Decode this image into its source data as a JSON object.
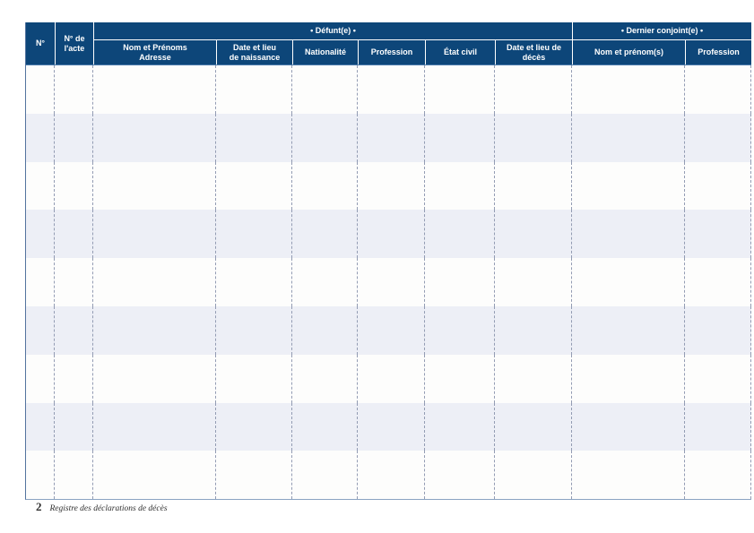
{
  "document": {
    "footer": {
      "page_number": "2",
      "title": "Registre des déclarations de décès"
    }
  },
  "table": {
    "group_headers": [
      {
        "label": "• Défunt(e) •",
        "span": 6
      },
      {
        "label": "• Dernier conjoint(e) •",
        "span": 2
      }
    ],
    "columns": [
      {
        "label": "N°"
      },
      {
        "label": "N° de\nl'acte"
      },
      {
        "label": "Nom et Prénoms\nAdresse"
      },
      {
        "label": "Date et lieu\nde naissance"
      },
      {
        "label": "Nationalité"
      },
      {
        "label": "Profession"
      },
      {
        "label": "État civil"
      },
      {
        "label": "Date et lieu de\ndécès"
      },
      {
        "label": "Nom et prénom(s)"
      },
      {
        "label": "Profession"
      }
    ],
    "body_row_count": 9,
    "body_cells_empty": true
  },
  "colors": {
    "header_bg": "#0d4679",
    "header_text": "#ffffff",
    "row_bg": "#fdfdfc",
    "row_alt_bg": "#edeff6",
    "grid_dash": "#939cb3",
    "table_left_border": "#53739e",
    "table_bottom_border": "#8aa3c2",
    "header_underline": "#4d7dad",
    "footer_text": "#2f2f2f"
  }
}
